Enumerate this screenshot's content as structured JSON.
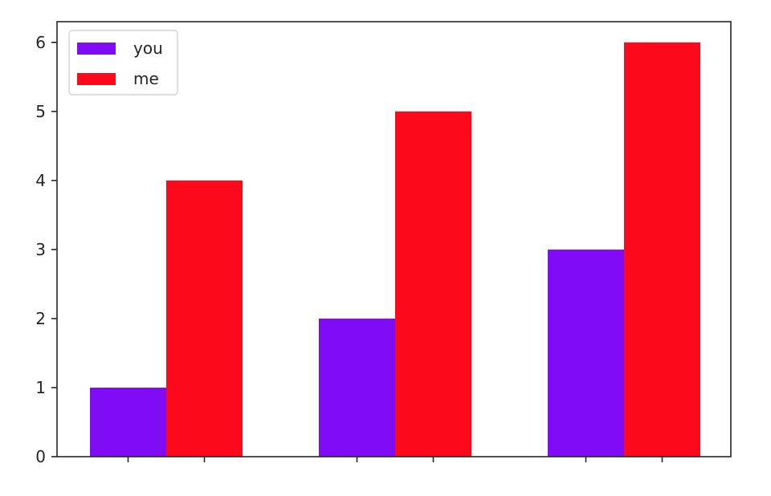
{
  "chart_data": {
    "type": "bar",
    "title": "",
    "xlabel": "",
    "ylabel": "",
    "categories": [
      "",
      "",
      ""
    ],
    "series": [
      {
        "name": "you",
        "color": "#7f0cf5",
        "values": [
          1,
          2,
          3
        ]
      },
      {
        "name": "me",
        "color": "#fc0a1c",
        "values": [
          4,
          5,
          6
        ]
      }
    ],
    "ylim": [
      0,
      6.3
    ],
    "yticks": [
      0,
      1,
      2,
      3,
      4,
      5,
      6
    ],
    "grid": false,
    "legend": "top-left"
  }
}
